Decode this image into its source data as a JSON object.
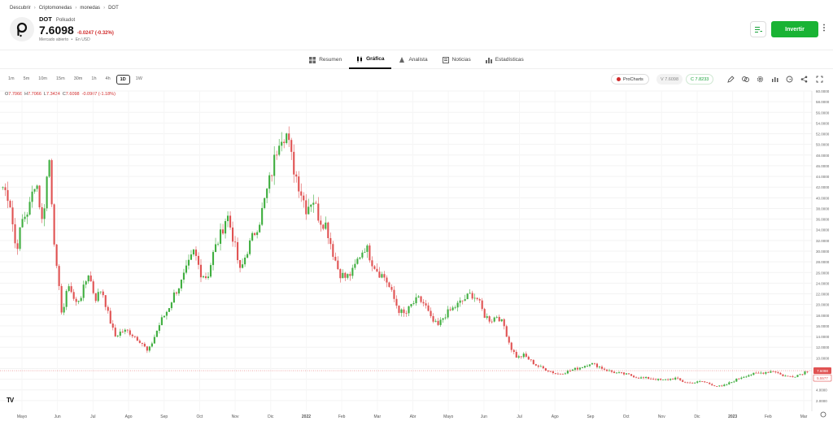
{
  "breadcrumb": [
    "Descubrir",
    "Criptomonedas",
    "monedas",
    "DOT"
  ],
  "instrument": {
    "ticker": "DOT",
    "name": "Polkadot",
    "price": "7.6098",
    "change": "-0.0247 (-0.32%)",
    "market_status": "Mercado abierto",
    "currency": "En USD"
  },
  "actions": {
    "invest_label": "Invertir"
  },
  "tabs": [
    {
      "label": "Resumen",
      "icon": "summary-icon"
    },
    {
      "label": "Gráfica",
      "icon": "candles-icon",
      "active": true
    },
    {
      "label": "Analista",
      "icon": "analyst-icon"
    },
    {
      "label": "Noticias",
      "icon": "news-icon"
    },
    {
      "label": "Estadísticas",
      "icon": "stats-icon"
    }
  ],
  "intervals": [
    "1m",
    "5m",
    "10m",
    "15m",
    "30m",
    "1h",
    "4h",
    "1D",
    "1W"
  ],
  "active_interval": "1D",
  "procharts_label": "ProCharts",
  "bid_label": "V 7.6098",
  "ask_label": "C 7.8233",
  "ohlc": {
    "o": "7.7066",
    "h": "7.7066",
    "l": "7.3434",
    "c": "7.6098",
    "chg": "-0.0907 (-1.18%)"
  },
  "colors": {
    "up": "#3fae3f",
    "down": "#e05252",
    "accent": "#19b334",
    "price_line": "#e05252"
  },
  "chart_data": {
    "type": "candlestick",
    "x_labels": [
      "Mayo",
      "Jun",
      "Jul",
      "Ago",
      "Sep",
      "Oct",
      "Nov",
      "Dic",
      "2022",
      "Feb",
      "Mar",
      "Abr",
      "Mayo",
      "Jun",
      "Jul",
      "Ago",
      "Sep",
      "Oct",
      "Nov",
      "Dic",
      "2023",
      "Feb",
      "Mar"
    ],
    "y_ticks": [
      "2.0000",
      "4.0000",
      "6.0000",
      "8.0000",
      "10.0000",
      "12.0000",
      "14.0000",
      "16.0000",
      "18.0000",
      "20.0000",
      "22.0000",
      "24.0000",
      "26.0000",
      "28.0000",
      "30.0000",
      "32.0000",
      "34.0000",
      "36.0000",
      "38.0000",
      "40.0000",
      "42.0000",
      "44.0000",
      "46.0000",
      "48.0000",
      "50.0000",
      "52.0000",
      "54.0000",
      "56.0000",
      "58.0000",
      "60.0000"
    ],
    "ylim": [
      0,
      60
    ],
    "close_series": [
      42,
      40,
      30,
      36,
      38,
      44,
      35,
      48,
      28,
      18,
      24,
      20,
      22,
      26,
      21,
      23,
      18,
      14,
      15,
      15,
      14,
      13,
      11,
      14,
      17,
      19,
      22,
      24,
      27,
      30,
      26,
      25,
      30,
      33,
      37,
      32,
      26,
      30,
      33,
      36,
      41,
      46,
      52,
      52,
      46,
      42,
      38,
      40,
      36,
      35,
      30,
      26,
      25,
      26,
      29,
      31,
      28,
      26,
      25,
      22,
      19,
      18,
      20,
      21,
      20,
      17,
      16,
      18,
      19,
      20,
      21,
      22,
      21,
      18,
      17,
      18,
      16,
      12,
      10,
      10.5,
      9.5,
      8.5,
      8,
      7.5,
      7,
      7.2,
      7.6,
      8,
      8.4,
      9,
      8.6,
      8,
      7.5,
      7.2,
      7,
      6.8,
      6.4,
      6.2,
      6.2,
      6,
      5.8,
      6,
      6.2,
      5.6,
      5.3,
      5.4,
      5.6,
      5.2,
      4.8,
      4.6,
      5.2,
      5.8,
      6.4,
      6.8,
      7,
      7.2,
      7.4,
      7.6,
      6.8,
      6.5,
      6.6,
      7.0,
      7.6098
    ],
    "last_price_label": "7.6098",
    "last_price_label_2": "5.5577"
  }
}
